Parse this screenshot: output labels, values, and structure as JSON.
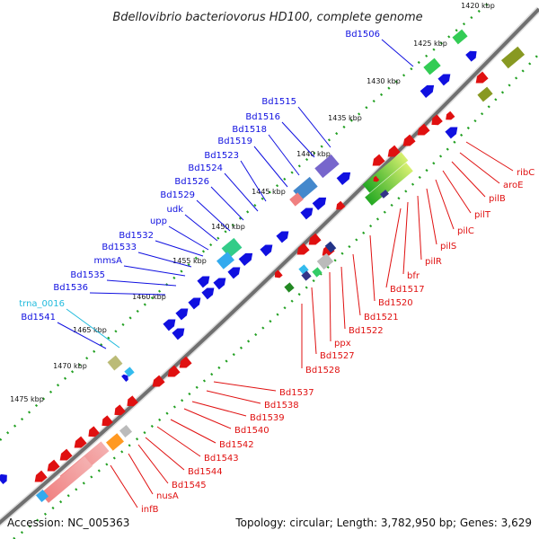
{
  "title": "Bdellovibrio bacteriovorus HD100, complete genome",
  "footer": {
    "accession": "Accession: NC_005363",
    "summary": "Topology: circular; Length: 3,782,950 bp; Genes: 3,629"
  },
  "kbp_ticks": [
    "1420 kbp",
    "1425 kbp",
    "1430 kbp",
    "1435 kbp",
    "1440 kbp",
    "1445 kbp",
    "1450 kbp",
    "1455 kbp",
    "1460 kbp",
    "1465 kbp",
    "1470 kbp",
    "1475 kbp"
  ],
  "forward_labels": [
    "Bd1506",
    "Bd1515",
    "Bd1516",
    "Bd1518",
    "Bd1519",
    "Bd1523",
    "Bd1524",
    "Bd1526",
    "Bd1529",
    "udk",
    "upp",
    "Bd1532",
    "Bd1533",
    "mmsA",
    "Bd1535",
    "Bd1536",
    "trna_0016",
    "Bd1541"
  ],
  "reverse_labels": [
    "ribC",
    "aroE",
    "pilB",
    "pilT",
    "pilC",
    "pilS",
    "pilR",
    "bfr",
    "Bd1517",
    "Bd1520",
    "Bd1521",
    "Bd1522",
    "ppx",
    "Bd1527",
    "Bd1528",
    "Bd1537",
    "Bd1538",
    "Bd1539",
    "Bd1540",
    "Bd1542",
    "Bd1543",
    "Bd1544",
    "Bd1545",
    "nusA",
    "infB"
  ],
  "colors": {
    "forward_gene": "#1010e0",
    "reverse_gene": "#e01010",
    "trna": "#22bbdd",
    "backbone": "#777777",
    "tick_green": "#22a022"
  }
}
